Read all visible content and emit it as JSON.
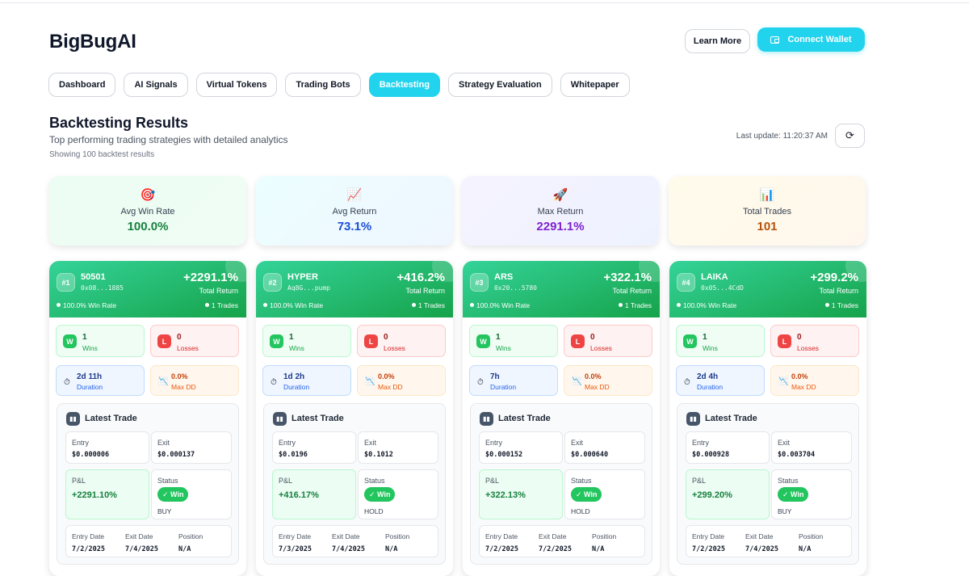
{
  "app": {
    "brand": "BigBugAI",
    "learn_more": "Learn More",
    "connect_wallet": "Connect Wallet"
  },
  "nav": {
    "tabs": [
      {
        "label": "Dashboard",
        "active": false
      },
      {
        "label": "AI Signals",
        "active": false
      },
      {
        "label": "Virtual Tokens",
        "active": false
      },
      {
        "label": "Trading Bots",
        "active": false
      },
      {
        "label": "Backtesting",
        "active": true
      },
      {
        "label": "Strategy Evaluation",
        "active": false
      },
      {
        "label": "Whitepaper",
        "active": false
      }
    ]
  },
  "section": {
    "title": "Backtesting Results",
    "subtitle": "Top performing trading strategies with detailed analytics",
    "count": "Showing 100 backtest results",
    "last_update": "Last update: 11:20:37 AM"
  },
  "stats": [
    {
      "icon": "target-icon",
      "glyph": "🎯",
      "label": "Avg Win Rate",
      "value": "100.0%",
      "color": "#15803d"
    },
    {
      "icon": "chart-up-icon",
      "glyph": "📈",
      "label": "Avg Return",
      "value": "73.1%",
      "color": "#1d4ed8"
    },
    {
      "icon": "rocket-icon",
      "glyph": "🚀",
      "label": "Max Return",
      "value": "2291.1%",
      "color": "#7e22ce"
    },
    {
      "icon": "bar-chart-icon",
      "glyph": "📊",
      "label": "Total Trades",
      "value": "101",
      "color": "#b45309"
    }
  ],
  "labels": {
    "total_return": "Total Return",
    "wins": "Wins",
    "losses": "Losses",
    "duration": "Duration",
    "max_dd": "Max DD",
    "latest_trade": "Latest Trade",
    "entry": "Entry",
    "exit": "Exit",
    "pnl": "P&L",
    "status": "Status",
    "entry_date": "Entry Date",
    "exit_date": "Exit Date",
    "position": "Position"
  },
  "cards": [
    {
      "rank": "#1",
      "name": "50501",
      "address": "0x08...1885",
      "total_return": "+2291.1%",
      "win_rate": "100.0% Win Rate",
      "trades": "1 Trades",
      "wins": "1",
      "losses": "0",
      "duration": "2d 11h",
      "max_dd": "0.0%",
      "entry": "$0.000006",
      "exit": "$0.000137",
      "pnl": "+2291.10%",
      "status": "✓ Win",
      "action": "BUY",
      "entry_date": "7/2/2025",
      "exit_date": "7/4/2025",
      "position": "N/A"
    },
    {
      "rank": "#2",
      "name": "HYPER",
      "address": "Aq8G...pump",
      "total_return": "+416.2%",
      "win_rate": "100.0% Win Rate",
      "trades": "1 Trades",
      "wins": "1",
      "losses": "0",
      "duration": "1d 2h",
      "max_dd": "0.0%",
      "entry": "$0.0196",
      "exit": "$0.1012",
      "pnl": "+416.17%",
      "status": "✓ Win",
      "action": "HOLD",
      "entry_date": "7/3/2025",
      "exit_date": "7/4/2025",
      "position": "N/A"
    },
    {
      "rank": "#3",
      "name": "ARS",
      "address": "0x20...5780",
      "total_return": "+322.1%",
      "win_rate": "100.0% Win Rate",
      "trades": "1 Trades",
      "wins": "1",
      "losses": "0",
      "duration": "7h",
      "max_dd": "0.0%",
      "entry": "$0.000152",
      "exit": "$0.000640",
      "pnl": "+322.13%",
      "status": "✓ Win",
      "action": "HOLD",
      "entry_date": "7/2/2025",
      "exit_date": "7/2/2025",
      "position": "N/A"
    },
    {
      "rank": "#4",
      "name": "LAIKA",
      "address": "0x05...4CdD",
      "total_return": "+299.2%",
      "win_rate": "100.0% Win Rate",
      "trades": "1 Trades",
      "wins": "1",
      "losses": "0",
      "duration": "2d 4h",
      "max_dd": "0.0%",
      "entry": "$0.000928",
      "exit": "$0.003704",
      "pnl": "+299.20%",
      "status": "✓ Win",
      "action": "BUY",
      "entry_date": "7/2/2025",
      "exit_date": "7/4/2025",
      "position": "N/A"
    }
  ]
}
